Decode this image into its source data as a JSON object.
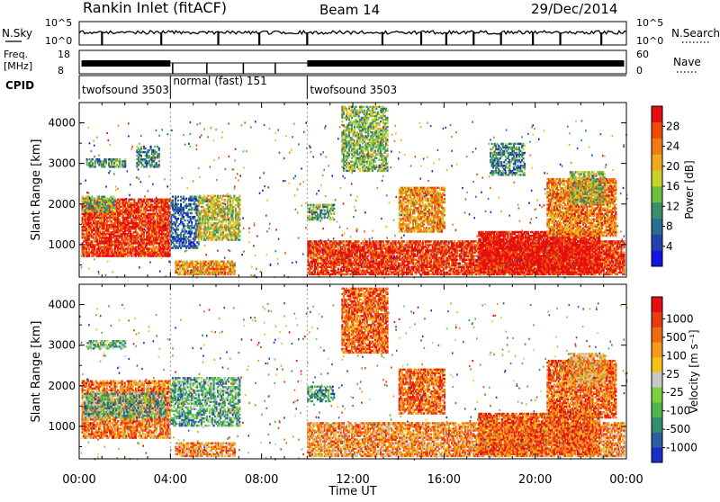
{
  "header": {
    "station": "Rankin Inlet (fitACF)",
    "beam": "Beam 14",
    "date": "29/Dec/2014"
  },
  "strips": {
    "noise": {
      "left_label": "N.Sky",
      "right_label": "N.Search",
      "left_ticks": [
        "10^5",
        "10^0"
      ],
      "right_ticks": [
        "10^5",
        "10^0"
      ]
    },
    "freq": {
      "left_label_1": "Freq.",
      "left_label_2": "[MHz]",
      "right_label": "Nave",
      "left_ticks": [
        "18",
        "8"
      ],
      "right_ticks": [
        "60",
        "0"
      ]
    },
    "cpid": {
      "label": "CPID",
      "segments": [
        {
          "start": 0,
          "end": 4,
          "text": "twofsound 3503"
        },
        {
          "start": 4,
          "end": 10,
          "text": "normal (fast) 151"
        },
        {
          "start": 10,
          "end": 24,
          "text": "twofsound 3503"
        }
      ]
    }
  },
  "colors": {
    "power_scale": [
      "#1414e6",
      "#2244aa",
      "#2a6f8f",
      "#3a8f6a",
      "#6cbf3a",
      "#c9d12a",
      "#f2a818",
      "#f27a10",
      "#ee4a0a",
      "#e60e0e"
    ],
    "velocity_scale": [
      "#1a2ecc",
      "#2a5fa0",
      "#2f8f6f",
      "#4fb84a",
      "#7ed03a",
      "#c8c8c8",
      "#f5c019",
      "#f5981e",
      "#f06a14",
      "#ea3a10",
      "#e60e0e"
    ]
  },
  "chart_data": [
    {
      "type": "heatmap",
      "panel": "power",
      "ylabel": "Slant Range [km]",
      "yticks": [
        "1000",
        "2000",
        "3000",
        "4000"
      ],
      "ylim": [
        200,
        4500
      ],
      "xlim": [
        0,
        24
      ],
      "colorbar_label": "Power [dB]",
      "colorbar_ticks": [
        "4",
        "8",
        "12",
        "16",
        "20",
        "24",
        "28"
      ],
      "colorbar_range": [
        0,
        32
      ],
      "regions": [
        {
          "t0": 0.1,
          "t1": 4.0,
          "r0": 700,
          "r1": 2100,
          "level": 0.9
        },
        {
          "t0": 0.1,
          "t1": 1.5,
          "r0": 1800,
          "r1": 2200,
          "level": 0.45
        },
        {
          "t0": 0.3,
          "t1": 2.0,
          "r0": 2900,
          "r1": 3100,
          "level": 0.35
        },
        {
          "t0": 2.5,
          "t1": 3.5,
          "r0": 2900,
          "r1": 3400,
          "level": 0.3
        },
        {
          "t0": 4.0,
          "t1": 5.2,
          "r0": 900,
          "r1": 2200,
          "level": 0.2
        },
        {
          "t0": 5.2,
          "t1": 7.0,
          "r0": 1100,
          "r1": 2200,
          "level": 0.55
        },
        {
          "t0": 4.2,
          "t1": 6.8,
          "r0": 250,
          "r1": 600,
          "level": 0.7
        },
        {
          "t0": 10.0,
          "t1": 11.2,
          "r0": 1600,
          "r1": 2000,
          "level": 0.4
        },
        {
          "t0": 11.5,
          "t1": 13.5,
          "r0": 2800,
          "r1": 4400,
          "level": 0.45
        },
        {
          "t0": 10.0,
          "t1": 23.9,
          "r0": 250,
          "r1": 1100,
          "level": 0.9
        },
        {
          "t0": 17.5,
          "t1": 22.8,
          "r0": 300,
          "r1": 1300,
          "level": 1.0
        },
        {
          "t0": 20.5,
          "t1": 23.5,
          "r0": 1200,
          "r1": 2600,
          "level": 0.75
        },
        {
          "t0": 21.5,
          "t1": 23.0,
          "r0": 2000,
          "r1": 2800,
          "level": 0.5
        },
        {
          "t0": 18.0,
          "t1": 19.5,
          "r0": 2700,
          "r1": 3500,
          "level": 0.3
        },
        {
          "t0": 14.0,
          "t1": 16.0,
          "r0": 1300,
          "r1": 2400,
          "level": 0.7
        }
      ]
    },
    {
      "type": "heatmap",
      "panel": "velocity",
      "ylabel": "Slant Range [km]",
      "yticks": [
        "1000",
        "2000",
        "3000",
        "4000"
      ],
      "ylim": [
        200,
        4500
      ],
      "xlim": [
        0,
        24
      ],
      "xticks": [
        "00:00",
        "04:00",
        "08:00",
        "12:00",
        "16:00",
        "20:00",
        "00:00"
      ],
      "xlabel": "Time UT",
      "colorbar_label": "Velocity [m s⁻¹]",
      "colorbar_ticks": [
        "1000",
        "500",
        "100",
        "25",
        "-25",
        "-100",
        "-500",
        "-1000"
      ],
      "regions": [
        {
          "t0": 0.1,
          "t1": 4.0,
          "r0": 700,
          "r1": 2100,
          "level": 0.75
        },
        {
          "t0": 0.2,
          "t1": 3.8,
          "r0": 1200,
          "r1": 1800,
          "level": 0.3
        },
        {
          "t0": 0.3,
          "t1": 2.0,
          "r0": 2900,
          "r1": 3100,
          "level": 0.35
        },
        {
          "t0": 4.0,
          "t1": 7.0,
          "r0": 1000,
          "r1": 2200,
          "level": 0.3
        },
        {
          "t0": 4.2,
          "t1": 6.8,
          "r0": 250,
          "r1": 600,
          "level": 0.7
        },
        {
          "t0": 10.0,
          "t1": 11.2,
          "r0": 1600,
          "r1": 2000,
          "level": 0.25
        },
        {
          "t0": 11.5,
          "t1": 13.5,
          "r0": 2800,
          "r1": 4400,
          "level": 0.8
        },
        {
          "t0": 10.0,
          "t1": 23.9,
          "r0": 250,
          "r1": 1100,
          "level": 0.7
        },
        {
          "t0": 17.5,
          "t1": 22.8,
          "r0": 300,
          "r1": 1300,
          "level": 0.8
        },
        {
          "t0": 20.5,
          "t1": 23.5,
          "r0": 1200,
          "r1": 2600,
          "level": 0.8
        },
        {
          "t0": 21.5,
          "t1": 23.0,
          "r0": 2000,
          "r1": 2800,
          "level": 0.65
        },
        {
          "t0": 14.0,
          "t1": 16.0,
          "r0": 1300,
          "r1": 2400,
          "level": 0.8
        }
      ]
    }
  ]
}
